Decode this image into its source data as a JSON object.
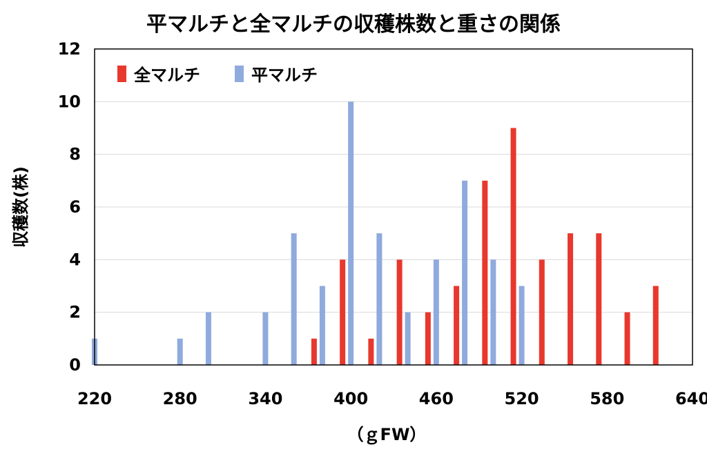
{
  "chart_data": {
    "type": "bar",
    "title": "平マルチと全マルチの収穫株数と重さの関係",
    "xlabel": "（ｇFW）",
    "ylabel": "収穫数(株)",
    "x_ticks": [
      "220",
      "280",
      "340",
      "400",
      "460",
      "520",
      "580",
      "640"
    ],
    "y_ticks": [
      "0",
      "2",
      "4",
      "6",
      "8",
      "10",
      "12"
    ],
    "xlim": [
      220,
      640
    ],
    "ylim": [
      0,
      12
    ],
    "grid": true,
    "legend_position": "top-left",
    "series": [
      {
        "name": "全マルチ",
        "color": "#e8382d",
        "points": [
          {
            "x": 380,
            "y": 1
          },
          {
            "x": 400,
            "y": 4
          },
          {
            "x": 420,
            "y": 1
          },
          {
            "x": 440,
            "y": 4
          },
          {
            "x": 460,
            "y": 2
          },
          {
            "x": 480,
            "y": 3
          },
          {
            "x": 500,
            "y": 7
          },
          {
            "x": 520,
            "y": 9
          },
          {
            "x": 540,
            "y": 4
          },
          {
            "x": 560,
            "y": 5
          },
          {
            "x": 580,
            "y": 5
          },
          {
            "x": 600,
            "y": 2
          },
          {
            "x": 620,
            "y": 3
          }
        ]
      },
      {
        "name": "平マルチ",
        "color": "#8faadc",
        "points": [
          {
            "x": 220,
            "y": 1
          },
          {
            "x": 280,
            "y": 1
          },
          {
            "x": 300,
            "y": 2
          },
          {
            "x": 340,
            "y": 2
          },
          {
            "x": 360,
            "y": 5
          },
          {
            "x": 380,
            "y": 3
          },
          {
            "x": 400,
            "y": 10
          },
          {
            "x": 420,
            "y": 5
          },
          {
            "x": 440,
            "y": 2
          },
          {
            "x": 460,
            "y": 4
          },
          {
            "x": 480,
            "y": 7
          },
          {
            "x": 500,
            "y": 4
          },
          {
            "x": 520,
            "y": 3
          }
        ]
      }
    ]
  }
}
